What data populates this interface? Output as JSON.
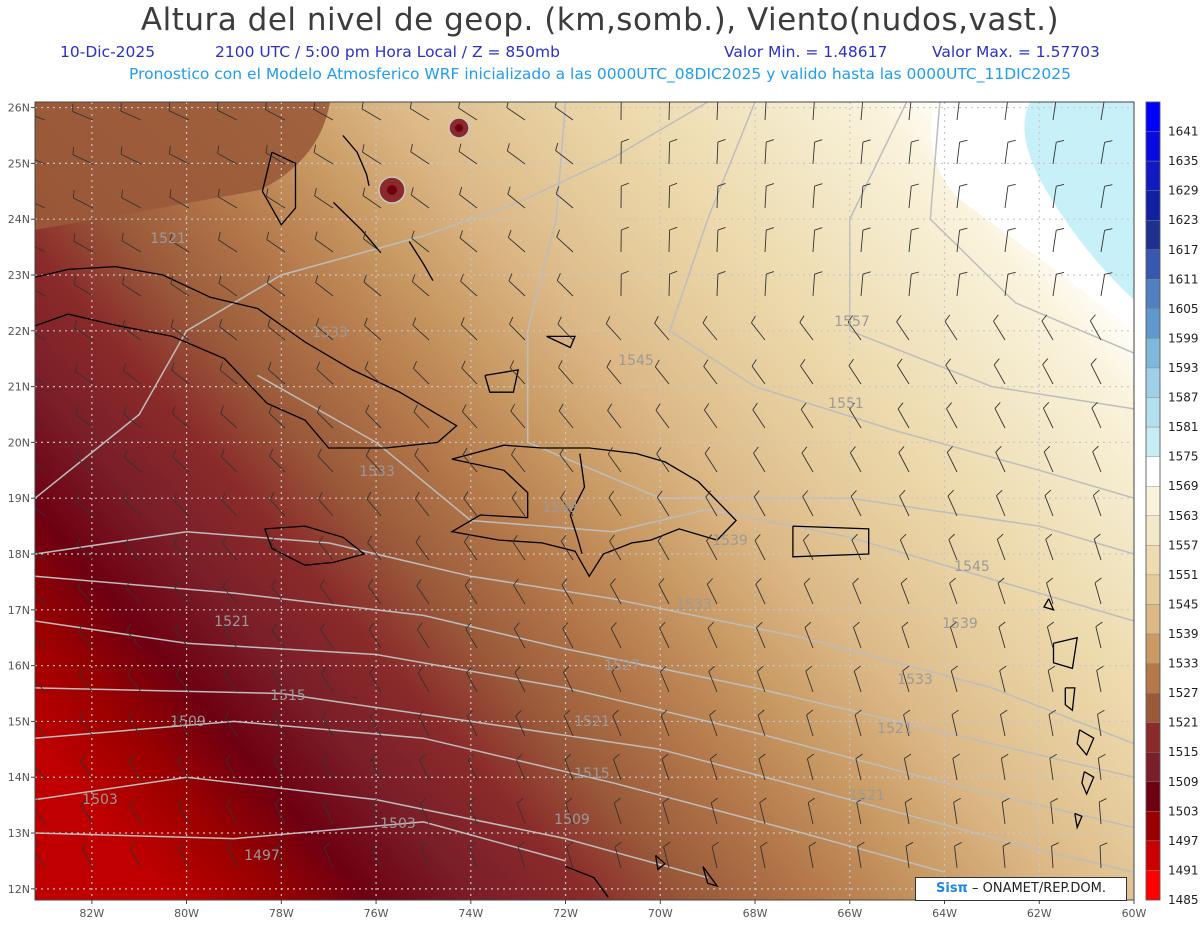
{
  "header": {
    "title": "Altura del nivel de geop. (km,somb.), Viento(nudos,vast.)",
    "date": "10-Dic-2025",
    "time": "2100 UTC / 5:00 pm Hora Local / Z = 850mb",
    "vmin": "Valor Min. = 1.48617",
    "vmax": "Valor Max. = 1.57703",
    "subtitle": "Pronostico con el Modelo Atmosferico WRF inicializado a las 0000UTC_08DIC2025 y valido hasta las  0000UTC_11DIC2025"
  },
  "map": {
    "lon_range": [
      -83.2,
      -60
    ],
    "lat_range": [
      11.8,
      26.1
    ],
    "lat_labels": [
      "26N",
      "25N",
      "24N",
      "23N",
      "22N",
      "21N",
      "20N",
      "19N",
      "18N",
      "17N",
      "16N",
      "15N",
      "14N",
      "13N",
      "12N"
    ],
    "lon_labels": [
      "82W",
      "80W",
      "78W",
      "76W",
      "74W",
      "72W",
      "70W",
      "68W",
      "66W",
      "64W",
      "62W",
      "60W"
    ],
    "contour_labels": [
      "1521",
      "1533",
      "1557",
      "1545",
      "1551",
      "1533",
      "1539",
      "1539",
      "1545",
      "1533",
      "1539",
      "1521",
      "1527",
      "1533",
      "1521",
      "1515",
      "1509",
      "1521",
      "1515",
      "1503",
      "1509",
      "1503",
      "1497",
      "1521"
    ]
  },
  "colorbar": {
    "values": [
      "1641",
      "1635",
      "1629",
      "1623",
      "1617",
      "1611",
      "1605",
      "1599",
      "1593",
      "1587",
      "1581",
      "1575",
      "1569",
      "1563",
      "1557",
      "1551",
      "1545",
      "1539",
      "1533",
      "1527",
      "1521",
      "1515",
      "1509",
      "1503",
      "1497",
      "1491",
      "1485"
    ],
    "colors": [
      "#0000ff",
      "#0a0ae0",
      "#101ac0",
      "#1020a0",
      "#203090",
      "#3858b0",
      "#5080c0",
      "#6098cc",
      "#80b8dc",
      "#a0d0e8",
      "#b4e0ee",
      "#c8ecf4",
      "#ffffff",
      "#faf3dc",
      "#f3e8c8",
      "#eedcb0",
      "#e6cc9c",
      "#dcb886",
      "#c99a64",
      "#b4784a",
      "#9a5a3a",
      "#8a2a2a",
      "#7a1e28",
      "#6e0012",
      "#9a0000",
      "#cc0000",
      "#ff0000"
    ]
  },
  "legend": {
    "credit_brand": "Sisπ",
    "credit_text": " – ONAMET/REP.DOM."
  }
}
